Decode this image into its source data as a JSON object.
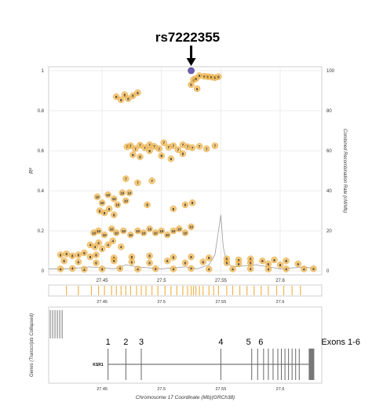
{
  "chart_data": {
    "type": "scatter",
    "lead_snp": {
      "label": "rs7222355",
      "x": 27.525,
      "r2": 1.0
    },
    "main_panel": {
      "ylabel": "R²",
      "y2label": "Combined Recombination Rate (cM/Mb)",
      "xlim": [
        27.405,
        27.635
      ],
      "ylim": [
        0,
        1.0
      ],
      "y2lim": [
        0,
        100
      ],
      "x_ticks": [
        "27.45",
        "27.5",
        "27.55",
        "27.6"
      ],
      "y_ticks": [
        "0",
        "0.2",
        "0.4",
        "0.6",
        "0.8",
        "1"
      ],
      "y2_ticks": [
        "0",
        "20",
        "40",
        "60",
        "80",
        "100"
      ],
      "grid": true
    },
    "recomb_rate_line": {
      "x": [
        27.405,
        27.42,
        27.44,
        27.46,
        27.47,
        27.48,
        27.5,
        27.52,
        27.53,
        27.54,
        27.545,
        27.548,
        27.55,
        27.552,
        27.555,
        27.56,
        27.58,
        27.6,
        27.62,
        27.63
      ],
      "y": [
        1,
        1,
        2,
        1,
        3,
        2,
        1,
        2,
        1,
        3,
        8,
        20,
        28,
        12,
        4,
        2,
        3,
        1,
        2,
        1
      ]
    },
    "snp_groups": [
      {
        "label": "9",
        "x": [
          27.532,
          27.536,
          27.539,
          27.542,
          27.545,
          27.548
        ],
        "r2": [
          0.975,
          0.972,
          0.97,
          0.968,
          0.965,
          0.97
        ]
      },
      {
        "label": "6",
        "x": [
          27.527,
          27.529,
          27.525,
          27.53
        ],
        "r2": [
          0.955,
          0.96,
          0.93,
          0.91
        ]
      },
      {
        "label": "8",
        "x": [
          27.462,
          27.466,
          27.469,
          27.472,
          27.476,
          27.48
        ],
        "r2": [
          0.87,
          0.855,
          0.88,
          0.86,
          0.875,
          0.89
        ]
      },
      {
        "label": "7",
        "x": [
          27.471,
          27.474,
          27.478,
          27.482,
          27.486,
          27.49,
          27.494,
          27.498,
          27.502,
          27.506,
          27.51,
          27.514,
          27.518,
          27.522,
          27.526,
          27.532,
          27.538,
          27.545
        ],
        "r2": [
          0.62,
          0.625,
          0.61,
          0.628,
          0.615,
          0.63,
          0.622,
          0.61,
          0.64,
          0.618,
          0.625,
          0.605,
          0.63,
          0.62,
          0.615,
          0.622,
          0.61,
          0.625
        ]
      },
      {
        "label": "8",
        "x": [
          27.476,
          27.482,
          27.49,
          27.5,
          27.508,
          27.518
        ],
        "r2": [
          0.58,
          0.57,
          0.6,
          0.575,
          0.56,
          0.585
        ]
      },
      {
        "label": "7",
        "x": [
          27.47,
          27.48,
          27.492
        ],
        "r2": [
          0.46,
          0.44,
          0.45
        ]
      },
      {
        "label": "10",
        "x": [
          27.446,
          27.45,
          27.455,
          27.46,
          27.463,
          27.467,
          27.473,
          27.47
        ],
        "r2": [
          0.37,
          0.34,
          0.38,
          0.36,
          0.33,
          0.39,
          0.39,
          0.35
        ]
      },
      {
        "label": "8",
        "x": [
          27.448,
          27.452,
          27.456,
          27.46,
          27.488,
          27.51,
          27.52,
          27.526
        ],
        "r2": [
          0.3,
          0.29,
          0.31,
          0.28,
          0.33,
          0.31,
          0.33,
          0.34
        ]
      },
      {
        "label": "10",
        "x": [
          27.443,
          27.447,
          27.452,
          27.458,
          27.462,
          27.468,
          27.474,
          27.48,
          27.485,
          27.49,
          27.495,
          27.5,
          27.505,
          27.51,
          27.515,
          27.52,
          27.525
        ],
        "r2": [
          0.19,
          0.2,
          0.18,
          0.21,
          0.19,
          0.2,
          0.18,
          0.2,
          0.19,
          0.21,
          0.19,
          0.2,
          0.18,
          0.2,
          0.21,
          0.19,
          0.22
        ]
      },
      {
        "label": "4",
        "x": [
          27.44,
          27.444,
          27.447,
          27.45,
          27.455,
          27.459,
          27.466
        ],
        "r2": [
          0.13,
          0.12,
          0.14,
          0.11,
          0.13,
          0.15,
          0.12
        ]
      },
      {
        "label": "8",
        "x": [
          27.415,
          27.42,
          27.425,
          27.43,
          27.435,
          27.44,
          27.445,
          27.46,
          27.475,
          27.49,
          27.51,
          27.525,
          27.54,
          27.555,
          27.565,
          27.575,
          27.585,
          27.595,
          27.605
        ],
        "r2": [
          0.08,
          0.085,
          0.075,
          0.08,
          0.09,
          0.07,
          0.08,
          0.065,
          0.07,
          0.075,
          0.068,
          0.07,
          0.065,
          0.06,
          0.055,
          0.06,
          0.05,
          0.055,
          0.05
        ]
      },
      {
        "label": "6",
        "x": [
          27.418,
          27.43,
          27.445,
          27.46,
          27.475,
          27.49,
          27.505,
          27.52,
          27.535,
          27.555,
          27.565,
          27.575,
          27.59,
          27.6,
          27.615
        ],
        "r2": [
          0.05,
          0.045,
          0.04,
          0.05,
          0.045,
          0.04,
          0.05,
          0.04,
          0.045,
          0.04,
          0.035,
          0.04,
          0.035,
          0.03,
          0.035
        ]
      },
      {
        "label": "4",
        "x": [
          27.415,
          27.425,
          27.435,
          27.45,
          27.465,
          27.48,
          27.495,
          27.51,
          27.525,
          27.54,
          27.56,
          27.575,
          27.59,
          27.605,
          27.62,
          27.628
        ],
        "r2": [
          0.01,
          0.012,
          0.008,
          0.01,
          0.012,
          0.009,
          0.011,
          0.01,
          0.012,
          0.009,
          0.01,
          0.011,
          0.009,
          0.01,
          0.01,
          0.011
        ]
      }
    ],
    "rug_panel": {
      "x": [
        27.42,
        27.43,
        27.441,
        27.447,
        27.452,
        27.458,
        27.462,
        27.466,
        27.47,
        27.474,
        27.479,
        27.483,
        27.487,
        27.492,
        27.497,
        27.503,
        27.508,
        27.513,
        27.518,
        27.522,
        27.525,
        27.527,
        27.529,
        27.532,
        27.535,
        27.54,
        27.544,
        27.548,
        27.555,
        27.56,
        27.566,
        27.572,
        27.578,
        27.584,
        27.59,
        27.597,
        27.603,
        27.61,
        27.617
      ],
      "x_ticks": [
        "27.45",
        "27.5",
        "27.55",
        "27.6"
      ]
    },
    "gene_panel": {
      "ylabel": "Genes (Transcripts Collapsed)",
      "xlabel": "Chromosome 17 Coordinate (Mb)(GRCh38)",
      "x_ticks": [
        "27.45",
        "27.5",
        "27.55",
        "27.6"
      ],
      "gene_name": "KSR1",
      "gene_start": 27.455,
      "gene_end": 27.628,
      "exon_labels": [
        "1",
        "2",
        "3",
        "4",
        "5",
        "6"
      ],
      "exon_label_x": [
        27.455,
        27.47,
        27.483,
        27.55,
        27.576,
        27.581
      ],
      "exon_x": [
        27.455,
        27.47,
        27.483,
        27.55,
        27.576,
        27.581,
        27.586,
        27.59,
        27.594,
        27.598,
        27.601,
        27.604,
        27.607,
        27.61,
        27.613,
        27.616
      ],
      "exon_range_label": "Exons 1-6",
      "small_gene_x": [
        27.405,
        27.407,
        27.409,
        27.411,
        27.413,
        27.415
      ]
    }
  }
}
